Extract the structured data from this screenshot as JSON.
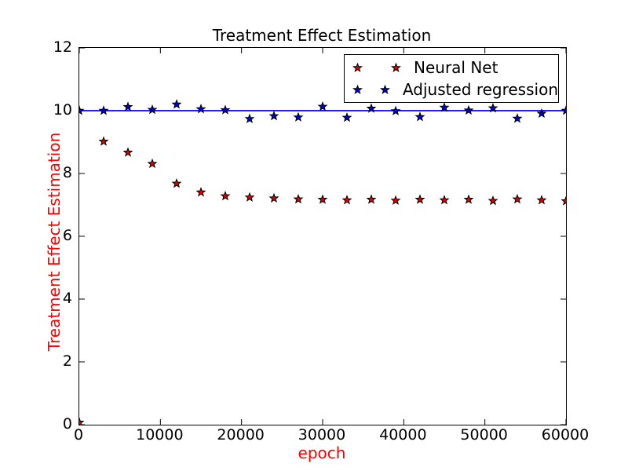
{
  "figure": {
    "background": "#ffffff",
    "frame_color": "#000000",
    "tick_color": "#000000"
  },
  "chart_data": {
    "type": "scatter",
    "title": "Treatment Effect Estimation",
    "xlabel": "epoch",
    "ylabel": "Treatment Effect Estimation",
    "xlabel_color": "#ff0000",
    "ylabel_color": "#ff0000",
    "xlim": [
      0,
      60000
    ],
    "ylim": [
      0,
      12
    ],
    "xticks": [
      0,
      10000,
      20000,
      30000,
      40000,
      50000,
      60000
    ],
    "yticks": [
      0,
      2,
      4,
      6,
      8,
      10,
      12
    ],
    "grid": false,
    "x": [
      0,
      3000,
      6000,
      9000,
      12000,
      15000,
      18000,
      21000,
      24000,
      27000,
      30000,
      33000,
      36000,
      39000,
      42000,
      45000,
      48000,
      51000,
      54000,
      57000,
      60000
    ],
    "series": [
      {
        "name": "Neural Net",
        "marker": "star",
        "color": "#dd0000",
        "edge_color": "#000000",
        "values": [
          0.07,
          9.02,
          8.67,
          8.31,
          7.68,
          7.4,
          7.28,
          7.24,
          7.21,
          7.18,
          7.17,
          7.15,
          7.17,
          7.14,
          7.17,
          7.15,
          7.17,
          7.13,
          7.18,
          7.15,
          7.12
        ]
      },
      {
        "name": "Adjusted regression",
        "marker": "star",
        "color": "#0000dd",
        "edge_color": "#000000",
        "values": [
          10.0,
          10.0,
          10.12,
          10.03,
          10.2,
          10.05,
          10.02,
          9.74,
          9.83,
          9.79,
          10.13,
          9.78,
          10.07,
          9.99,
          9.8,
          10.1,
          10.01,
          10.08,
          9.75,
          9.91,
          10.0
        ]
      }
    ],
    "hline": {
      "y": 10.0,
      "color": "#0000ff",
      "width": 1.8
    },
    "legend": {
      "position": "upper right",
      "entries": [
        "Neural Net",
        "Adjusted regression"
      ]
    }
  }
}
